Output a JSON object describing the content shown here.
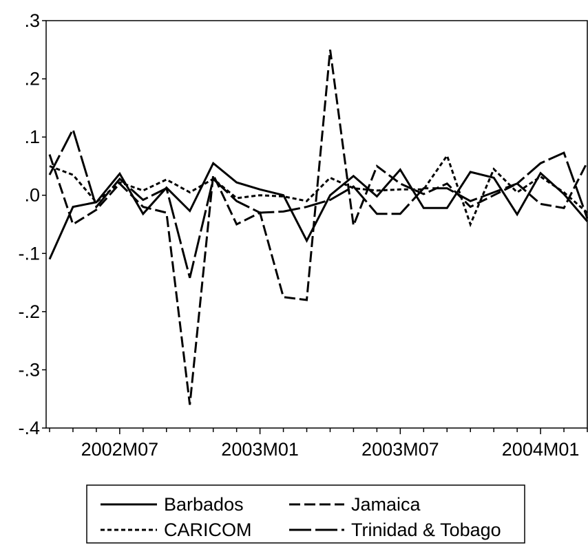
{
  "chart_data": {
    "type": "line",
    "title": "",
    "xlabel": "",
    "ylabel": "",
    "ylim": [
      -0.4,
      0.3
    ],
    "y_ticks": [
      ".3",
      ".2",
      ".1",
      ".0",
      "-.1",
      "-.2",
      "-.3",
      "-.4"
    ],
    "x_tick_labels": [
      "2002M07",
      "2003M01",
      "2003M07",
      "2004M01"
    ],
    "x": [
      "2002M04",
      "2002M05",
      "2002M06",
      "2002M07",
      "2002M08",
      "2002M09",
      "2002M10",
      "2002M11",
      "2002M12",
      "2003M01",
      "2003M02",
      "2003M03",
      "2003M04",
      "2003M05",
      "2003M06",
      "2003M07",
      "2003M08",
      "2003M09",
      "2003M10",
      "2003M11",
      "2003M12",
      "2004M01",
      "2004M02",
      "2004M03"
    ],
    "grid": false,
    "legend_position": "bottom",
    "series": [
      {
        "name": "Barbados",
        "dash": "solid",
        "values": [
          -0.11,
          -0.02,
          -0.012,
          0.037,
          -0.032,
          0.013,
          -0.027,
          0.055,
          0.022,
          0.01,
          0.0,
          -0.078,
          0.0,
          0.033,
          -0.002,
          0.044,
          -0.022,
          -0.022,
          0.04,
          0.03,
          -0.033,
          0.038,
          0.002,
          -0.045
        ]
      },
      {
        "name": "Jamaica",
        "dash": "long",
        "values": [
          0.07,
          -0.05,
          -0.025,
          0.02,
          -0.02,
          -0.03,
          -0.36,
          0.035,
          -0.05,
          -0.03,
          -0.175,
          -0.18,
          0.25,
          -0.052,
          0.05,
          0.02,
          0.002,
          0.02,
          -0.02,
          0.0,
          0.02,
          -0.015,
          -0.022,
          0.057
        ]
      },
      {
        "name": "CARICOM",
        "dash": "short",
        "values": [
          0.05,
          0.035,
          -0.012,
          0.022,
          0.008,
          0.027,
          0.005,
          0.028,
          -0.005,
          0.0,
          -0.002,
          -0.01,
          0.03,
          0.012,
          0.008,
          0.01,
          0.01,
          0.068,
          -0.05,
          0.045,
          0.005,
          0.032,
          0.005,
          -0.03
        ]
      },
      {
        "name": "Trinidad & Tobago",
        "dash": "medium",
        "values": [
          0.035,
          0.113,
          -0.02,
          0.028,
          -0.008,
          0.012,
          -0.142,
          0.028,
          -0.01,
          -0.03,
          -0.028,
          -0.02,
          -0.008,
          0.015,
          -0.032,
          -0.032,
          0.012,
          0.012,
          -0.01,
          0.005,
          0.02,
          0.055,
          0.073,
          -0.04
        ]
      }
    ]
  },
  "legend": {
    "items": [
      {
        "label": "Barbados",
        "dash": "solid"
      },
      {
        "label": "Jamaica",
        "dash": "long"
      },
      {
        "label": "CARICOM",
        "dash": "short"
      },
      {
        "label": "Trinidad & Tobago",
        "dash": "medium"
      }
    ]
  }
}
